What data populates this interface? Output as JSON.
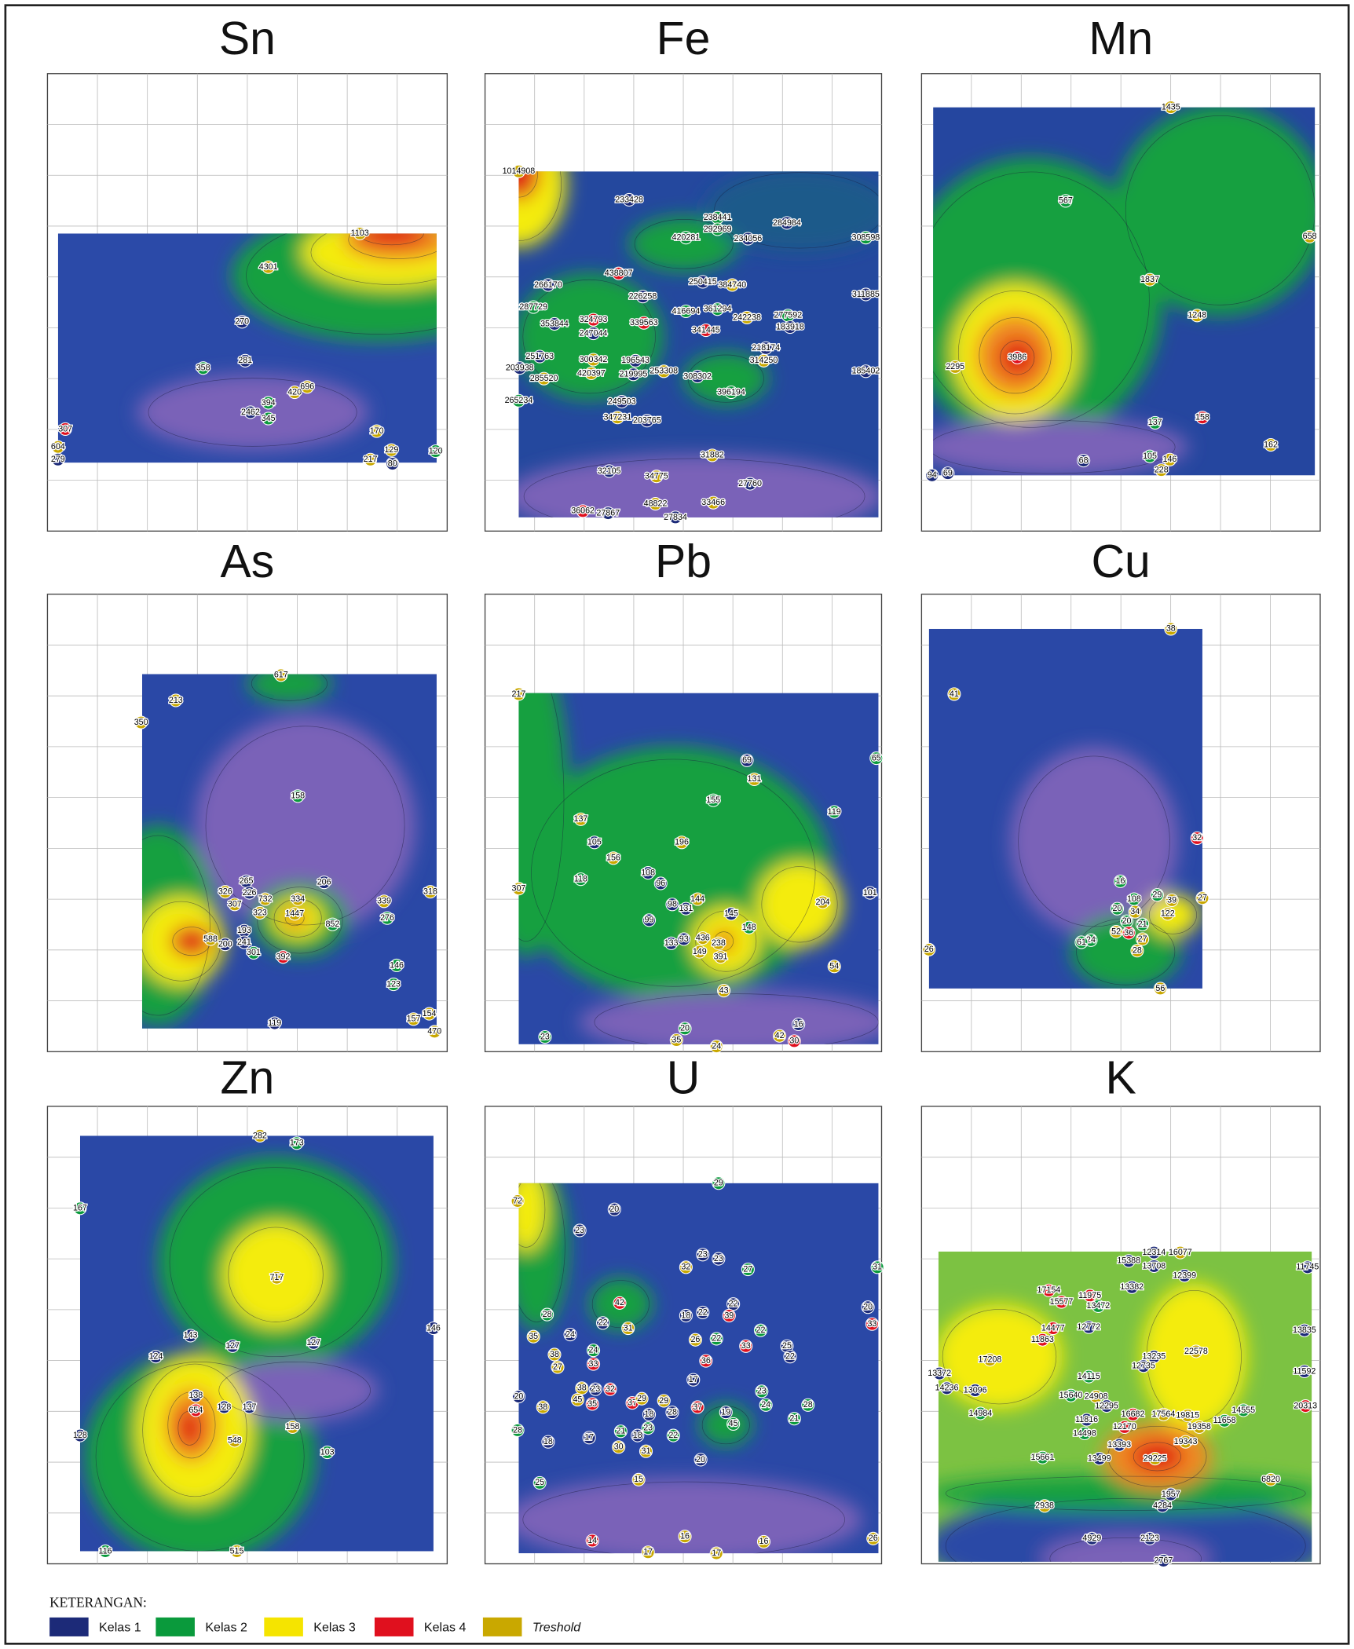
{
  "panels": [
    {
      "title": "Sn",
      "labels": [
        1103,
        4301,
        270,
        281,
        358,
        420,
        696,
        394,
        2462,
        345,
        307,
        604,
        279,
        170,
        129,
        217,
        80,
        120
      ]
    },
    {
      "title": "Fe",
      "labels": [
        1014908,
        233428,
        238441,
        292969,
        284984,
        420281,
        234056,
        308598,
        438807,
        250415,
        384740,
        266170,
        311885,
        226258,
        287729,
        416694,
        361294,
        242238,
        277592,
        353844,
        324793,
        339563,
        183918,
        247044,
        341445,
        218174,
        251763,
        300342,
        196543,
        314250,
        203938,
        420397,
        219995,
        253308,
        308302,
        185402,
        285520,
        396194,
        265234,
        249503,
        347231,
        203765,
        31882,
        32105,
        34775,
        27760,
        48822,
        33466,
        36062,
        27867,
        27834
      ]
    },
    {
      "title": "Mn",
      "labels": [
        1435,
        567,
        658,
        1837,
        1248,
        3986,
        2295,
        137,
        158,
        162,
        105,
        146,
        228,
        68,
        94,
        69
      ]
    },
    {
      "title": "As",
      "labels": [
        617,
        213,
        350,
        158,
        265,
        206,
        326,
        226,
        732,
        334,
        307,
        339,
        318,
        323,
        1447,
        276,
        852,
        193,
        588,
        200,
        241,
        301,
        392,
        146,
        123,
        119,
        157,
        154,
        470
      ]
    },
    {
      "title": "Pb",
      "labels": [
        217,
        65,
        69,
        131,
        155,
        119,
        137,
        196,
        105,
        156,
        118,
        108,
        96,
        307,
        101,
        204,
        98,
        144,
        131,
        145,
        99,
        148,
        133,
        93,
        436,
        238,
        149,
        391,
        54,
        43,
        23,
        20,
        35,
        24,
        42,
        16,
        30
      ]
    },
    {
      "title": "Cu",
      "labels": [
        38,
        41,
        32,
        16,
        108,
        29,
        39,
        20,
        34,
        122,
        27,
        20,
        21,
        52,
        36,
        24,
        61,
        27,
        28,
        26,
        56
      ]
    },
    {
      "title": "Zn",
      "labels": [
        282,
        173,
        167,
        717,
        146,
        143,
        127,
        127,
        124,
        138,
        654,
        128,
        137,
        128,
        158,
        548,
        103,
        116,
        515
      ]
    },
    {
      "title": "U",
      "labels": [
        29,
        72,
        20,
        23,
        23,
        23,
        32,
        27,
        31,
        42,
        22,
        18,
        22,
        39,
        20,
        28,
        22,
        31,
        33,
        35,
        24,
        26,
        22,
        22,
        33,
        25,
        22,
        38,
        24,
        36,
        27,
        33,
        17,
        23,
        20,
        38,
        23,
        32,
        45,
        35,
        37,
        29,
        29,
        37,
        24,
        28,
        38,
        18,
        28,
        19,
        45,
        21,
        28,
        21,
        23,
        18,
        22,
        17,
        18,
        30,
        31,
        20,
        25,
        15,
        14,
        16,
        16,
        26,
        17,
        17
      ]
    },
    {
      "title": "K",
      "labels": [
        12314,
        16077,
        15388,
        13708,
        12399,
        11745,
        13382,
        17154,
        11975,
        15577,
        13472,
        12772,
        14477,
        11863,
        22578,
        13835,
        13235,
        17208,
        12735,
        13372,
        11592,
        14115,
        14236,
        13096,
        15640,
        24908,
        12295,
        20313,
        14984,
        14555,
        16682,
        17564,
        19815,
        11816,
        11658,
        12170,
        19358,
        14498,
        13393,
        19343,
        13499,
        15661,
        29225,
        6820,
        1957,
        4284,
        2938,
        4929,
        2123,
        2767
      ]
    }
  ],
  "legend": {
    "title": "KETERANGAN:",
    "items": [
      "Kelas 1",
      "Kelas 2",
      "Kelas 3",
      "Kelas 4",
      "Treshold"
    ]
  }
}
